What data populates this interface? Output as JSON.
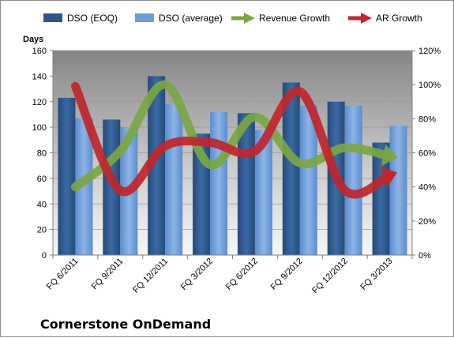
{
  "chart_data": {
    "type": "bar",
    "title": "",
    "subtitle": "Cornerstone OnDemand",
    "xlabel": "",
    "ylabel": "Days",
    "y2label": "",
    "ylim": [
      0,
      160
    ],
    "y2lim": [
      0,
      1.2
    ],
    "yticks": [
      "0",
      "20",
      "40",
      "60",
      "80",
      "100",
      "120",
      "140",
      "160"
    ],
    "y2ticks": [
      "0%",
      "20%",
      "40%",
      "60%",
      "80%",
      "100%",
      "120%"
    ],
    "categories": [
      "FQ 6/2011",
      "FQ 9/2011",
      "FQ 12/2011",
      "FQ 3/2012",
      "FQ 6/2012",
      "FQ 9/2012",
      "FQ 12/2012",
      "FQ 3/2013"
    ],
    "series": [
      {
        "name": "DSO (EOQ)",
        "type": "bar",
        "axis": "left",
        "color": "#2e5587",
        "values": [
          123,
          106,
          140,
          95,
          111,
          135,
          120,
          88
        ]
      },
      {
        "name": "DSO (average)",
        "type": "bar",
        "axis": "left",
        "color": "#6e9cd8",
        "values": [
          107,
          100,
          118,
          112,
          98,
          117,
          117,
          101
        ]
      },
      {
        "name": "Revenue Growth",
        "type": "arrow-line",
        "axis": "right",
        "color": "#7aa743",
        "values": [
          0.4,
          0.61,
          1.0,
          0.53,
          0.81,
          0.54,
          0.63,
          0.58
        ]
      },
      {
        "name": "AR Growth",
        "type": "arrow-line",
        "axis": "right",
        "color": "#c0262d",
        "values": [
          0.99,
          0.38,
          0.64,
          0.66,
          0.61,
          0.96,
          0.38,
          0.47
        ]
      }
    ],
    "grid": true,
    "legend": "top"
  }
}
